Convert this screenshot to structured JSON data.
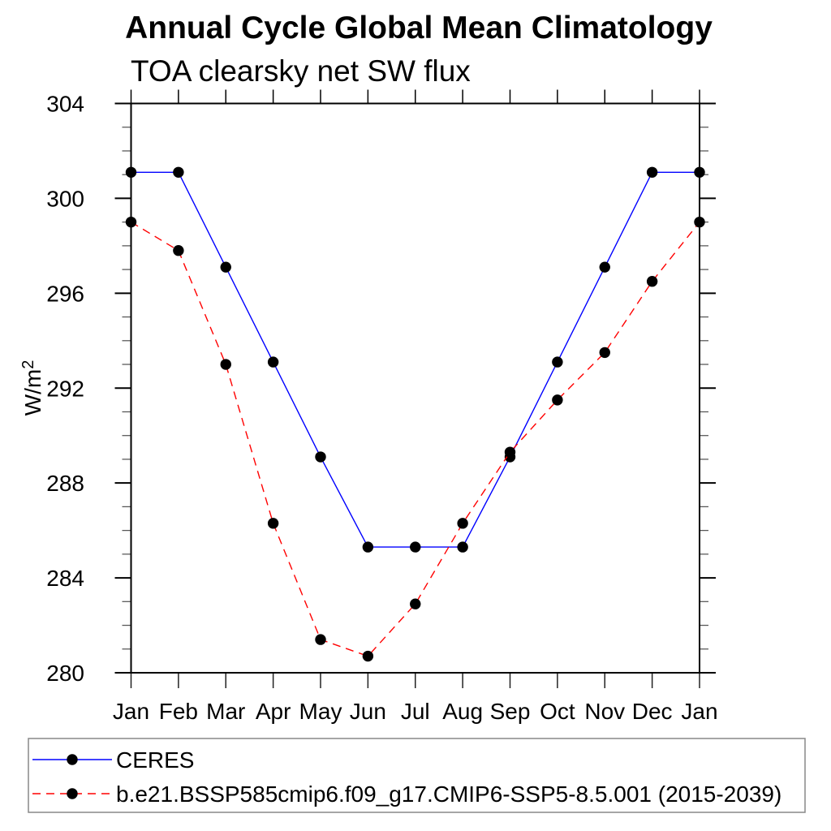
{
  "title": "Annual Cycle Global Mean Climatology",
  "subtitle": "TOA clearsky net SW flux",
  "y_axis": {
    "label_base": "W/m",
    "label_exponent": "2",
    "tick_labels": [
      "280",
      "284",
      "288",
      "292",
      "296",
      "300",
      "304"
    ]
  },
  "x_axis": {
    "tick_labels": [
      "Jan",
      "Feb",
      "Mar",
      "Apr",
      "May",
      "Jun",
      "Jul",
      "Aug",
      "Sep",
      "Oct",
      "Nov",
      "Dec",
      "Jan"
    ]
  },
  "chart_data": {
    "type": "line",
    "categories": [
      "Jan",
      "Feb",
      "Mar",
      "Apr",
      "May",
      "Jun",
      "Jul",
      "Aug",
      "Sep",
      "Oct",
      "Nov",
      "Dec",
      "Jan"
    ],
    "series": [
      {
        "name": "CERES",
        "color": "#0000ff",
        "line_style": "solid",
        "marker": "filled-circle",
        "marker_color": "#000000",
        "values": [
          301.1,
          301.1,
          297.1,
          293.1,
          289.1,
          285.3,
          285.3,
          285.3,
          289.1,
          293.1,
          297.1,
          301.1,
          301.1
        ]
      },
      {
        "name": "b.e21.BSSP585cmip6.f09_g17.CMIP6-SSP5-8.5.001 (2015-2039)",
        "color": "#ff0000",
        "line_style": "dashed",
        "marker": "filled-circle",
        "marker_color": "#000000",
        "values": [
          299.0,
          297.8,
          293.0,
          286.3,
          281.4,
          280.7,
          282.9,
          286.3,
          289.3,
          291.5,
          293.5,
          296.5,
          299.0
        ]
      }
    ],
    "title": "Annual Cycle Global Mean Climatology",
    "subtitle": "TOA clearsky net SW flux",
    "ylabel": "W/m^2",
    "xlabel": "",
    "ylim": [
      280,
      304
    ],
    "y_major_step": 4,
    "y_minor_step": 1,
    "grid": false,
    "legend_position": "bottom-left"
  }
}
